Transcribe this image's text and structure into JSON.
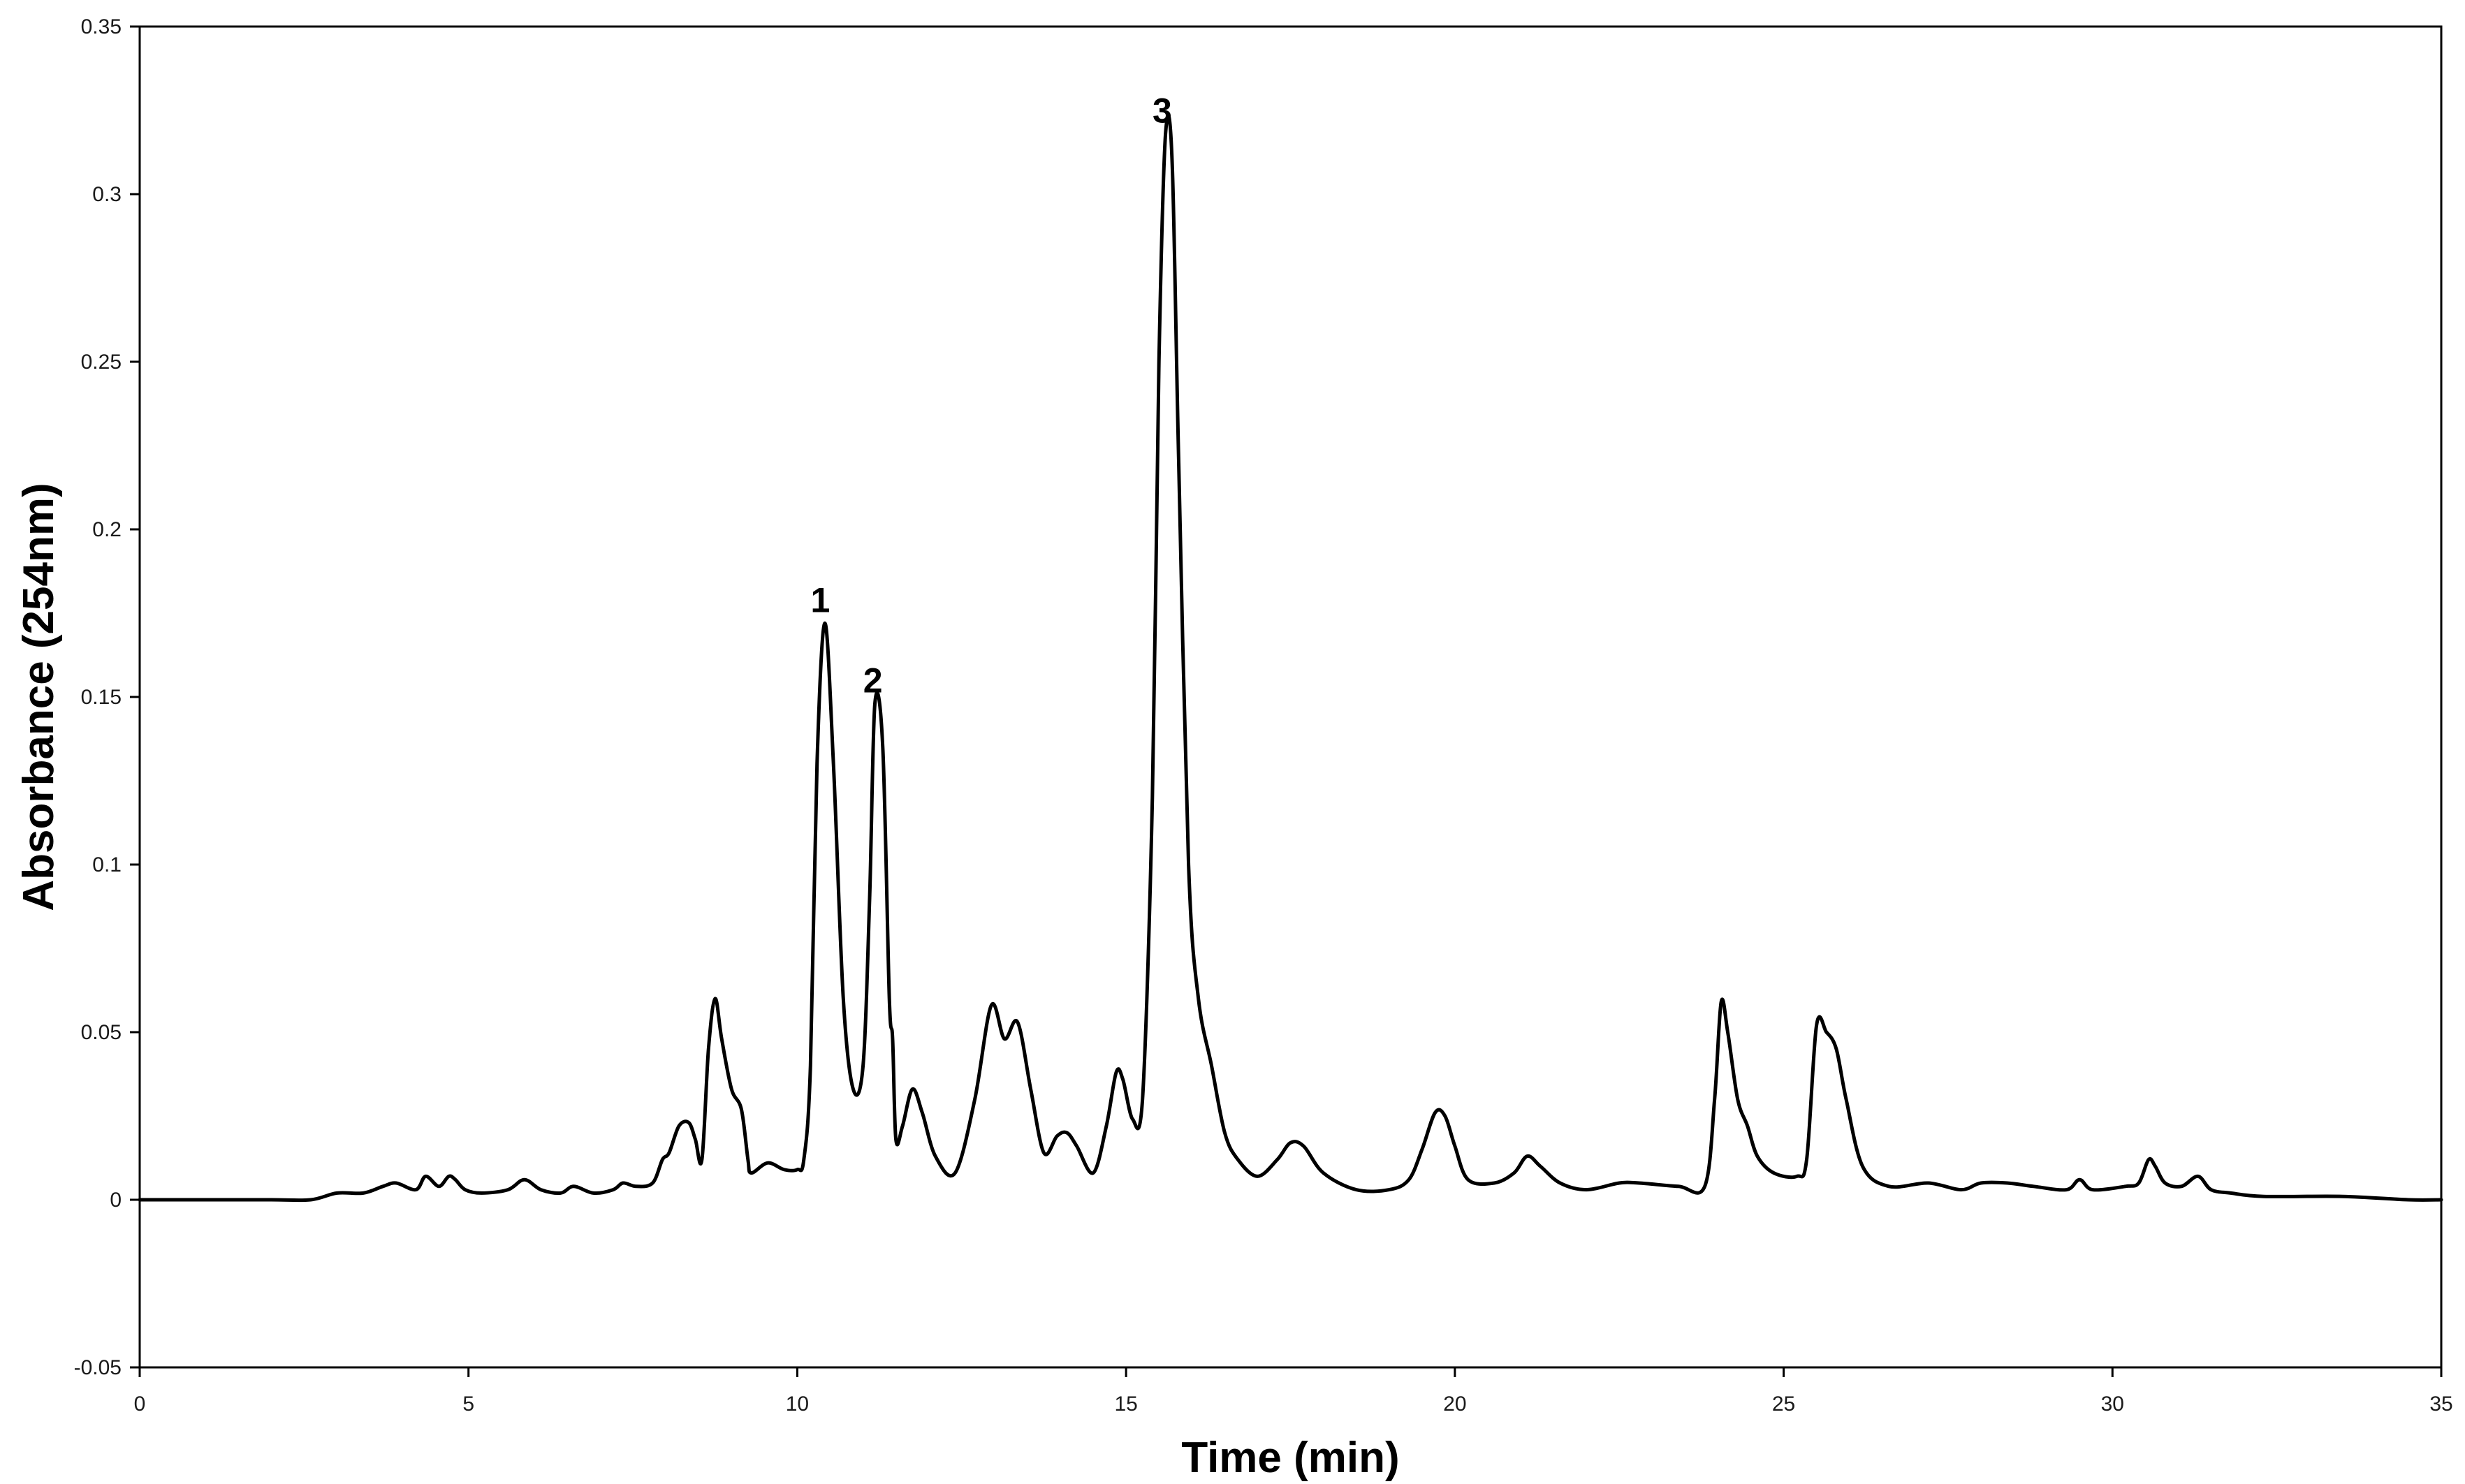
{
  "chart_data": {
    "type": "line",
    "xlabel": "Time (min)",
    "ylabel": "Absorbance  (254nm)",
    "xlim": [
      0,
      35
    ],
    "ylim": [
      -0.05,
      0.35
    ],
    "xticks": [
      0,
      5,
      10,
      15,
      20,
      25,
      30,
      35
    ],
    "yticks": [
      -0.05,
      0,
      0.05,
      0.1,
      0.15,
      0.2,
      0.25,
      0.3,
      0.35
    ],
    "xtick_labels": [
      "0",
      "5",
      "10",
      "15",
      "20",
      "25",
      "30",
      "35"
    ],
    "ytick_labels": [
      "-0.05",
      "0",
      "0.05",
      "0.1",
      "0.15",
      "0.2",
      "0.25",
      "0.3",
      "0.35"
    ],
    "grid": false,
    "line_color": "#000000",
    "series": [
      {
        "x": [
          0,
          1,
          2,
          2.6,
          3,
          3.4,
          3.7,
          3.9,
          4.2,
          4.35,
          4.55,
          4.7,
          4.8,
          4.95,
          5.2,
          5.6,
          5.85,
          6.1,
          6.4,
          6.6,
          6.9,
          7.2,
          7.35,
          7.55,
          7.8,
          7.95,
          8.05,
          8.2,
          8.35,
          8.45,
          8.55,
          8.65,
          8.75,
          8.85,
          9.0,
          9.15,
          9.25,
          9.3,
          9.55,
          9.8,
          10.0,
          10.1,
          10.2,
          10.3,
          10.42,
          10.55,
          10.7,
          10.85,
          11.0,
          11.1,
          11.18,
          11.3,
          11.4,
          11.45,
          11.5,
          11.6,
          11.75,
          11.9,
          12.1,
          12.4,
          12.7,
          12.95,
          13.15,
          13.35,
          13.55,
          13.75,
          13.95,
          14.1,
          14.25,
          14.5,
          14.7,
          14.85,
          14.95,
          15.1,
          15.25,
          15.4,
          15.5,
          15.6,
          15.7,
          15.8,
          15.95,
          16.1,
          16.3,
          16.5,
          16.7,
          17.0,
          17.3,
          17.5,
          17.7,
          18.0,
          18.5,
          19.0,
          19.3,
          19.5,
          19.7,
          19.85,
          20.0,
          20.2,
          20.6,
          20.9,
          21.1,
          21.3,
          21.6,
          22.0,
          22.5,
          22.8,
          23.4,
          23.8,
          23.95,
          24.05,
          24.15,
          24.3,
          24.45,
          24.6,
          24.85,
          25.2,
          25.35,
          25.5,
          25.65,
          25.8,
          25.95,
          26.2,
          26.6,
          27.2,
          27.7,
          28.0,
          28.4,
          28.8,
          29.3,
          29.5,
          29.7,
          30.2,
          30.4,
          30.55,
          30.65,
          30.8,
          31.05,
          31.3,
          31.5,
          31.8,
          32.3,
          33.5,
          34.5,
          35
        ],
        "values": [
          0,
          0,
          0,
          0,
          0.002,
          0.002,
          0.004,
          0.005,
          0.003,
          0.007,
          0.004,
          0.007,
          0.006,
          0.003,
          0.002,
          0.003,
          0.006,
          0.003,
          0.002,
          0.004,
          0.002,
          0.003,
          0.005,
          0.004,
          0.005,
          0.012,
          0.014,
          0.022,
          0.023,
          0.018,
          0.012,
          0.045,
          0.06,
          0.048,
          0.033,
          0.027,
          0.012,
          0.008,
          0.011,
          0.009,
          0.009,
          0.012,
          0.04,
          0.13,
          0.172,
          0.13,
          0.06,
          0.033,
          0.04,
          0.09,
          0.148,
          0.135,
          0.06,
          0.048,
          0.018,
          0.022,
          0.033,
          0.026,
          0.013,
          0.008,
          0.03,
          0.058,
          0.048,
          0.053,
          0.033,
          0.014,
          0.019,
          0.02,
          0.016,
          0.008,
          0.022,
          0.038,
          0.036,
          0.024,
          0.03,
          0.12,
          0.25,
          0.318,
          0.31,
          0.22,
          0.1,
          0.06,
          0.04,
          0.02,
          0.012,
          0.007,
          0.012,
          0.017,
          0.016,
          0.008,
          0.003,
          0.003,
          0.006,
          0.015,
          0.026,
          0.025,
          0.016,
          0.006,
          0.005,
          0.008,
          0.013,
          0.01,
          0.005,
          0.003,
          0.005,
          0.005,
          0.004,
          0.004,
          0.03,
          0.059,
          0.05,
          0.03,
          0.022,
          0.013,
          0.008,
          0.007,
          0.012,
          0.052,
          0.05,
          0.045,
          0.03,
          0.01,
          0.004,
          0.005,
          0.003,
          0.005,
          0.005,
          0.004,
          0.003,
          0.006,
          0.003,
          0.004,
          0.005,
          0.012,
          0.01,
          0.005,
          0.004,
          0.007,
          0.003,
          0.002,
          0.001,
          0.001,
          0,
          0
        ]
      }
    ],
    "annotations": [
      {
        "text": "1",
        "x": 10.35,
        "y": 0.172
      },
      {
        "text": "2",
        "x": 11.15,
        "y": 0.148
      },
      {
        "text": "3",
        "x": 15.55,
        "y": 0.318
      }
    ]
  }
}
